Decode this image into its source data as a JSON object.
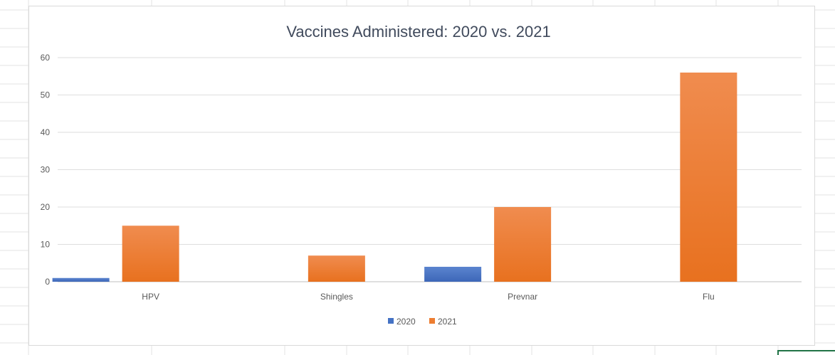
{
  "chart_data": {
    "type": "bar",
    "title": "Vaccines Administered: 2020 vs. 2021",
    "categories": [
      "HPV",
      "Shingles",
      "Prevnar",
      "Flu"
    ],
    "series": [
      {
        "name": "2020",
        "values": [
          1,
          0,
          4,
          0
        ],
        "color": "#4472c4"
      },
      {
        "name": "2021",
        "values": [
          15,
          7,
          20,
          56
        ],
        "color": "#ed7d31"
      }
    ],
    "y_ticks": [
      "0",
      "10",
      "20",
      "30",
      "40",
      "50",
      "60"
    ],
    "ylim": [
      0,
      60
    ],
    "xlabel": "",
    "ylabel": "",
    "grid": true,
    "legend_position": "bottom"
  }
}
